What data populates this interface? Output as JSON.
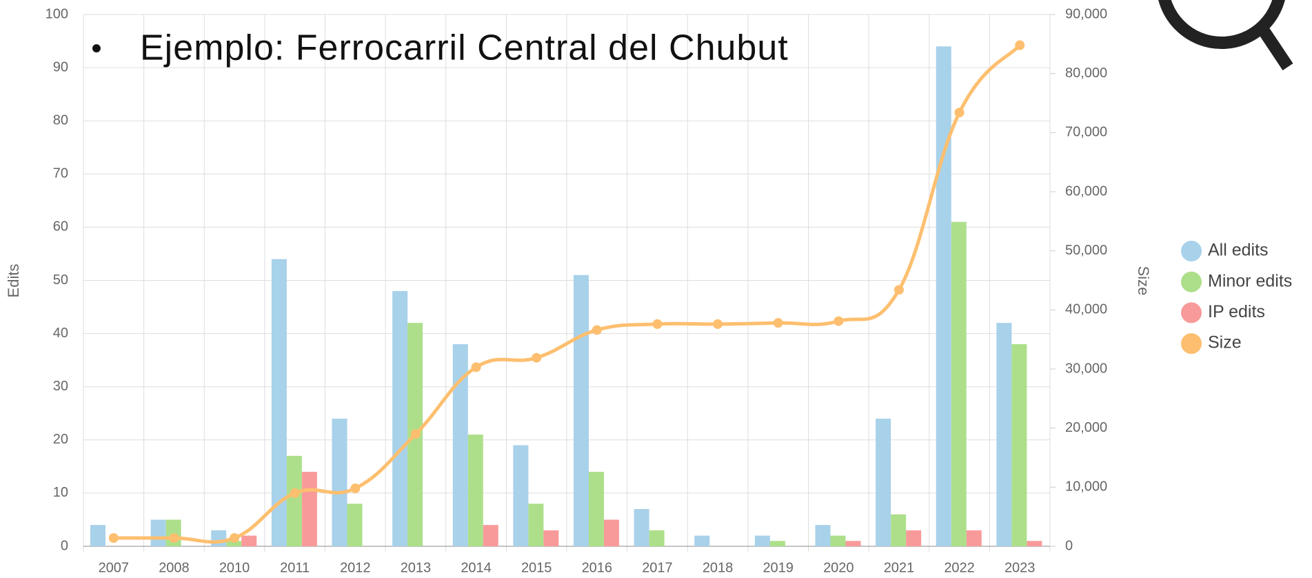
{
  "heading": "Ejemplo: Ferrocarril Central del Chubut",
  "chart_data": {
    "type": "bar",
    "categories": [
      "2007",
      "2008",
      "2010",
      "2011",
      "2012",
      "2013",
      "2014",
      "2015",
      "2016",
      "2017",
      "2018",
      "2019",
      "2020",
      "2021",
      "2022",
      "2023"
    ],
    "series": [
      {
        "name": "All edits",
        "color": "#a8d1ea",
        "values": [
          4,
          5,
          3,
          54,
          24,
          48,
          38,
          19,
          51,
          7,
          2,
          2,
          4,
          24,
          94,
          42
        ]
      },
      {
        "name": "Minor edits",
        "color": "#addf8a",
        "values": [
          0,
          5,
          1,
          17,
          8,
          42,
          21,
          8,
          14,
          3,
          0,
          1,
          2,
          6,
          61,
          38
        ]
      },
      {
        "name": "IP edits",
        "color": "#f99a9a",
        "values": [
          0,
          0,
          2,
          14,
          0,
          0,
          4,
          3,
          5,
          0,
          0,
          0,
          1,
          3,
          3,
          1
        ]
      },
      {
        "name": "Size",
        "color": "#fdbf6f",
        "type": "line",
        "axis": "y2",
        "values": [
          1400,
          1400,
          1400,
          9000,
          9800,
          19000,
          30300,
          31900,
          36600,
          37600,
          37600,
          37800,
          38100,
          43400,
          73400,
          84800
        ]
      }
    ],
    "ylabel": "Edits",
    "y2label": "Size",
    "ylim": [
      0,
      100
    ],
    "yticks": [
      0,
      10,
      20,
      30,
      40,
      50,
      60,
      70,
      80,
      90,
      100
    ],
    "y2lim": [
      0,
      90000
    ],
    "y2ticks": [
      0,
      {
        "value": 10000,
        "label": "10,000"
      },
      {
        "value": 20000,
        "label": "20,000"
      },
      {
        "value": 30000,
        "label": "30,000"
      },
      {
        "value": 40000,
        "label": "40,000"
      },
      {
        "value": 50000,
        "label": "50,000"
      },
      {
        "value": 60000,
        "label": "60,000"
      },
      {
        "value": 70000,
        "label": "70,000"
      },
      {
        "value": 80000,
        "label": "80,000"
      },
      {
        "value": 90000,
        "label": "90,000"
      }
    ],
    "grid": true,
    "legend": "right"
  }
}
